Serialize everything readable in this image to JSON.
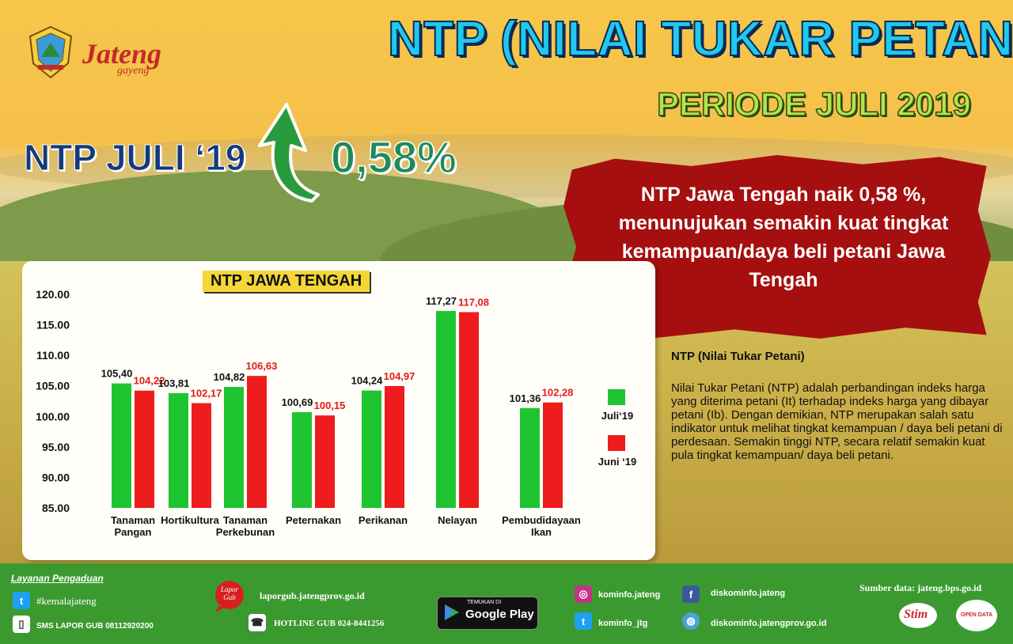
{
  "header": {
    "title": "NTP  (NILAI TUKAR PETANI )",
    "subtitle": "PERIODE  JULI 2019",
    "brand_name": "Jateng",
    "brand_tagline": "gayeng"
  },
  "headline": {
    "label": "NTP JULI ‘19",
    "change": "0,58%",
    "direction_icon": "up-arrow-icon"
  },
  "banner": {
    "text": "NTP Jawa Tengah naik 0,58 %, menunujukan semakin kuat tingkat kemampuan/daya beli petani Jawa Tengah"
  },
  "definition": {
    "title": "NTP (Nilai Tukar Petani)",
    "body": "Nilai Tukar Petani (NTP) adalah perbandingan indeks harga yang diterima petani (It) terhadap indeks harga yang dibayar petani (Ib). Dengan demikian, NTP merupakan salah satu indikator untuk melihat tingkat kemampuan / daya beli petani di perdesaan. Semakin tinggi NTP, secara relatif semakin kuat pula tingkat kemampuan/ daya beli petani."
  },
  "chart_data": {
    "type": "bar",
    "title": "NTP JAWA TENGAH",
    "categories": [
      "Tanaman Pangan",
      "Hortikultura",
      "Tanaman Perkebunan",
      "Peternakan",
      "Perikanan",
      "Nelayan",
      "Pembudidayaan Ikan"
    ],
    "category_lines": [
      [
        "Tanaman",
        "Pangan"
      ],
      [
        "Hortikultura"
      ],
      [
        "Tanaman",
        "Perkebunan"
      ],
      [
        "Peternakan"
      ],
      [
        "Perikanan"
      ],
      [
        "Nelayan"
      ],
      [
        "Pembudidayaan",
        "Ikan"
      ]
    ],
    "series": [
      {
        "name": "Juli‘19",
        "color": "#1fc431",
        "values": [
          105.4,
          103.81,
          104.82,
          100.69,
          104.24,
          117.27,
          101.36
        ],
        "labels": [
          "105,40",
          "103,81",
          "104,82",
          "100,69",
          "104,24",
          "117,27",
          "101,36"
        ],
        "label_color": "#111111"
      },
      {
        "name": "Juni ‘19",
        "color": "#ee1c1c",
        "values": [
          104.22,
          102.17,
          106.63,
          100.15,
          104.97,
          117.08,
          102.28
        ],
        "labels": [
          "104,22",
          "102,17",
          "106,63",
          "100,15",
          "104,97",
          "117,08",
          "102,28"
        ],
        "label_color": "#e11a1a"
      }
    ],
    "yticks": [
      "120.00",
      "115.00",
      "110.00",
      "105.00",
      "100.00",
      "95.00",
      "90.00",
      "85.00"
    ],
    "ylim": [
      85,
      120
    ],
    "grid": false,
    "legend_position": "right"
  },
  "footer": {
    "layanan_title": "Layanan Pengaduan",
    "twitter_handle": "#kemalajateng",
    "sms": "SMS LAPOR GUB 08112920200",
    "lapor_logo": "Lapor Gub",
    "lapor_url": "laporgub.jatengprov.go.id",
    "hotline": "HOTLINE GUB 024-8441256",
    "gplay_small": "TEMUKAN DI",
    "gplay_big": "Google Play",
    "instagram": "kominfo.jateng",
    "twitter2": "kominfo_jtg",
    "facebook": "diskominfo.jateng",
    "website": "diskominfo.jatengprov.go.id",
    "source": "Sumber data: jateng.bps.go.id",
    "logo1": "Stim",
    "logo2": "OPEN DATA"
  },
  "colors": {
    "title": "#21c8ee",
    "subtitle": "#b3e34c",
    "banner": "#a50f0f",
    "footer": "#3b9a2f",
    "chart_title_bg": "#f5d637"
  }
}
